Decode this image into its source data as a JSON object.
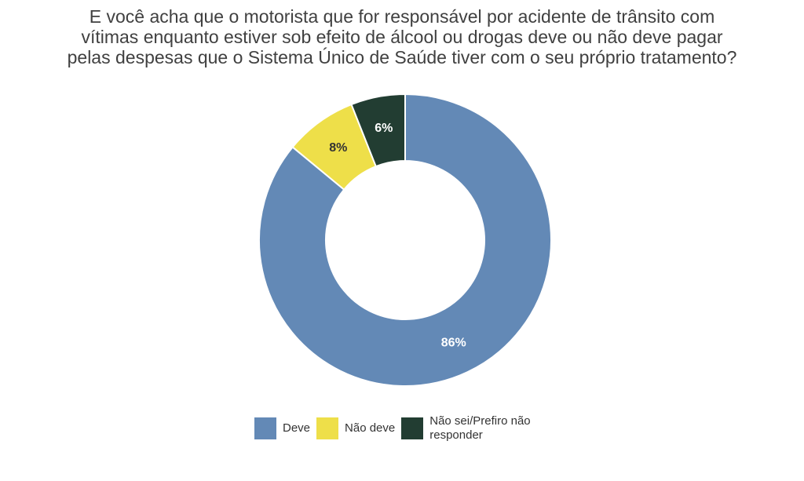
{
  "chart_data": {
    "type": "pie",
    "title": [
      "E você acha que o motorista que for responsável por acidente de trânsito com",
      "vítimas enquanto estiver sob efeito de álcool ou drogas deve ou não deve pagar",
      "pelas despesas que o Sistema Único de Saúde tiver com o seu próprio tratamento?"
    ],
    "donut": true,
    "legend_position": "bottom",
    "slices": [
      {
        "name": "Deve",
        "value": 86,
        "label": "86%",
        "color": "#6389b6",
        "label_color": "#ffffff"
      },
      {
        "name": "Não deve",
        "value": 8,
        "label": "8%",
        "color": "#eedf49",
        "label_color": "#333333"
      },
      {
        "name": "Não sei/Prefiro não responder",
        "value": 6,
        "label": "6%",
        "color": "#223d32",
        "label_color": "#ffffff"
      }
    ]
  }
}
